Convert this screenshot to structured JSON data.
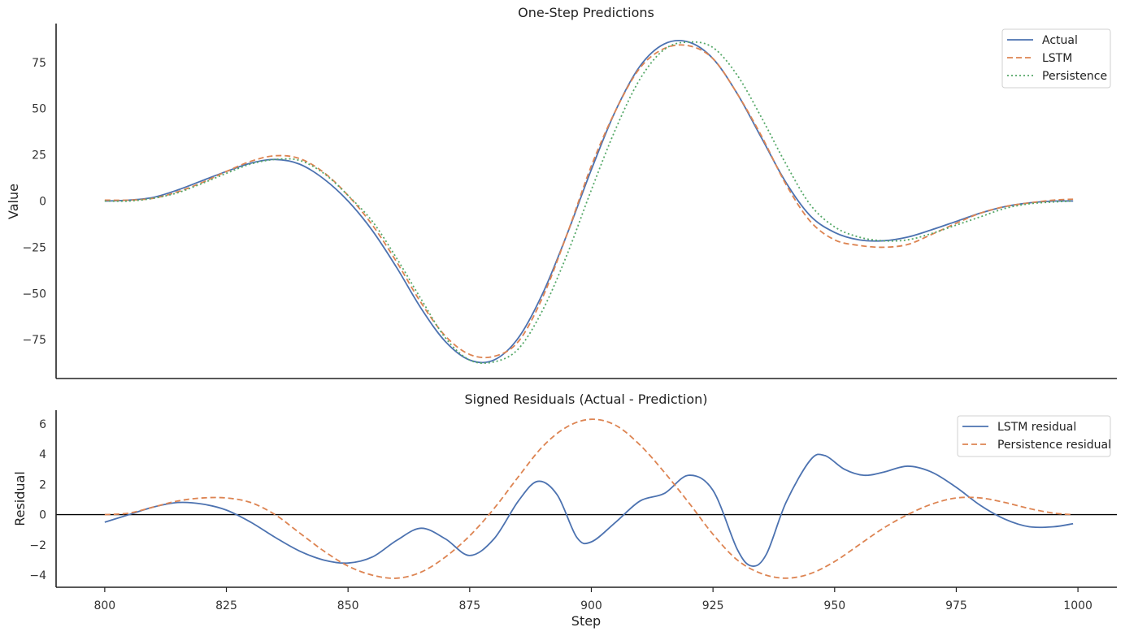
{
  "figure": {
    "xlabel": "Step"
  },
  "chart_data": [
    {
      "type": "line",
      "title": "One-Step Predictions",
      "xlabel": "",
      "ylabel": "Value",
      "xlim": [
        790,
        1008
      ],
      "ylim": [
        -96,
        96
      ],
      "yticks": [
        -75,
        -50,
        -25,
        0,
        25,
        50,
        75
      ],
      "ytick_labels": [
        "−75",
        "−50",
        "−25",
        "0",
        "25",
        "50",
        "75"
      ],
      "grid": false,
      "legend_position": "top-right",
      "series": [
        {
          "name": "Actual",
          "color": "#4c72b0",
          "dash": "solid",
          "x": [
            800,
            805,
            810,
            815,
            820,
            825,
            830,
            835,
            840,
            845,
            850,
            855,
            860,
            865,
            870,
            875,
            880,
            885,
            890,
            895,
            900,
            905,
            910,
            915,
            920,
            925,
            930,
            935,
            940,
            945,
            950,
            955,
            960,
            965,
            970,
            975,
            980,
            985,
            990,
            995,
            999
          ],
          "y": [
            0,
            0.5,
            2,
            6,
            11,
            16,
            20.5,
            22.5,
            20,
            12,
            0,
            -16,
            -36,
            -58,
            -76,
            -86,
            -86,
            -74,
            -50,
            -18,
            17,
            49,
            73,
            85,
            86,
            77,
            58,
            34,
            10,
            -8,
            -17,
            -21,
            -21.5,
            -19.5,
            -15.5,
            -11,
            -6.5,
            -3,
            -1,
            0,
            0
          ]
        },
        {
          "name": "LSTM",
          "color": "#dd8452",
          "dash": "dashed",
          "x": [
            800,
            805,
            810,
            815,
            820,
            825,
            830,
            835,
            840,
            845,
            850,
            855,
            860,
            865,
            870,
            875,
            880,
            885,
            890,
            895,
            900,
            905,
            910,
            915,
            920,
            925,
            930,
            935,
            940,
            945,
            950,
            955,
            960,
            965,
            970,
            975,
            980,
            985,
            990,
            995,
            999
          ],
          "y": [
            0.5,
            0.5,
            1.5,
            5,
            10,
            16,
            21.5,
            24.5,
            23,
            15.5,
            3,
            -13,
            -33,
            -55,
            -73,
            -83,
            -84,
            -76,
            -52,
            -18,
            19,
            49,
            72,
            82.5,
            84,
            77,
            58,
            35,
            9,
            -11,
            -21,
            -24,
            -25,
            -23.5,
            -18,
            -12,
            -6.5,
            -3,
            -1,
            0.5,
            1
          ]
        },
        {
          "name": "Persistence",
          "color": "#55a868",
          "dash": "dotted",
          "x": [
            800,
            805,
            810,
            815,
            820,
            825,
            830,
            835,
            840,
            845,
            850,
            855,
            860,
            865,
            870,
            875,
            880,
            885,
            890,
            895,
            900,
            905,
            910,
            915,
            920,
            925,
            930,
            935,
            940,
            945,
            950,
            955,
            960,
            965,
            970,
            975,
            980,
            985,
            990,
            995,
            999
          ],
          "y": [
            0,
            0,
            1.5,
            4.5,
            9.5,
            15,
            20,
            22.5,
            22,
            15,
            3,
            -11,
            -31,
            -53,
            -74,
            -86,
            -87,
            -80,
            -59,
            -29,
            6,
            39,
            66,
            82,
            86,
            83,
            68,
            45,
            20,
            -2,
            -14,
            -19.5,
            -21.5,
            -21,
            -17.5,
            -13,
            -8.5,
            -4,
            -1.5,
            -0.5,
            0
          ]
        }
      ]
    },
    {
      "type": "line",
      "title": "Signed Residuals (Actual - Prediction)",
      "xlabel": "Step",
      "ylabel": "Residual",
      "xlim": [
        790,
        1008
      ],
      "ylim": [
        -4.8,
        6.9
      ],
      "xticks": [
        800,
        825,
        850,
        875,
        900,
        925,
        950,
        975,
        1000
      ],
      "yticks": [
        -4,
        -2,
        0,
        2,
        4,
        6
      ],
      "ytick_labels": [
        "−4",
        "−2",
        "0",
        "2",
        "4",
        "6"
      ],
      "reference_line": 0,
      "grid": false,
      "legend_position": "top-right",
      "series": [
        {
          "name": "LSTM residual",
          "color": "#4c72b0",
          "dash": "solid",
          "x": [
            800,
            805,
            810,
            815,
            820,
            825,
            830,
            835,
            840,
            845,
            850,
            855,
            860,
            865,
            870,
            875,
            880,
            885,
            889,
            893,
            897,
            900,
            905,
            910,
            915,
            920,
            925,
            930,
            933,
            936,
            940,
            945,
            948,
            952,
            956,
            960,
            965,
            970,
            975,
            980,
            985,
            990,
            995,
            999
          ],
          "y": [
            -0.5,
            0,
            0.5,
            0.8,
            0.7,
            0.3,
            -0.5,
            -1.5,
            -2.4,
            -3,
            -3.2,
            -2.8,
            -1.7,
            -0.9,
            -1.6,
            -2.7,
            -1.6,
            0.9,
            2.2,
            1.3,
            -1.5,
            -1.8,
            -0.5,
            0.9,
            1.4,
            2.6,
            1.6,
            -2.3,
            -3.4,
            -2.6,
            0.8,
            3.6,
            3.9,
            3,
            2.6,
            2.8,
            3.2,
            2.8,
            1.8,
            0.6,
            -0.3,
            -0.8,
            -0.8,
            -0.6
          ]
        },
        {
          "name": "Persistence residual",
          "color": "#dd8452",
          "dash": "dashed",
          "x": [
            800,
            805,
            810,
            815,
            820,
            825,
            830,
            835,
            840,
            845,
            850,
            855,
            860,
            865,
            870,
            875,
            880,
            885,
            890,
            895,
            900,
            905,
            910,
            915,
            920,
            925,
            930,
            935,
            940,
            945,
            950,
            955,
            960,
            965,
            970,
            975,
            980,
            985,
            990,
            995,
            999
          ],
          "y": [
            0,
            0.1,
            0.5,
            0.9,
            1.1,
            1.1,
            0.8,
            0,
            -1.2,
            -2.4,
            -3.4,
            -4,
            -4.2,
            -3.8,
            -2.8,
            -1.4,
            0.4,
            2.5,
            4.5,
            5.8,
            6.3,
            5.9,
            4.6,
            2.8,
            0.8,
            -1.3,
            -3.0,
            -3.9,
            -4.2,
            -3.9,
            -3.1,
            -2,
            -0.9,
            0,
            0.7,
            1.1,
            1.1,
            0.8,
            0.4,
            0.1,
            0
          ]
        }
      ]
    }
  ]
}
